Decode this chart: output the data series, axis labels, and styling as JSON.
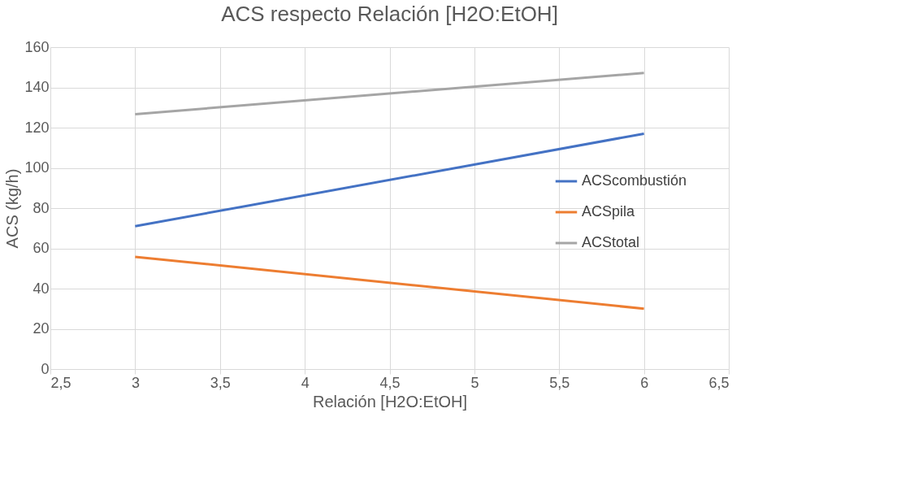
{
  "chart_data": {
    "type": "line",
    "title": "ACS respecto Relación [H2O:EtOH]",
    "xlabel": "Relación [H2O:EtOH]",
    "ylabel": "ACS (kg/h)",
    "x": [
      3,
      6
    ],
    "series": [
      {
        "name": "ACScombustión",
        "color": "#4472c4",
        "values": [
          71,
          117
        ]
      },
      {
        "name": "ACSpila",
        "color": "#ed7d31",
        "values": [
          55.8,
          30
        ]
      },
      {
        "name": "ACStotal",
        "color": "#a5a5a5",
        "values": [
          126.7,
          147.2
        ]
      }
    ],
    "xlim": [
      2.5,
      6.5
    ],
    "xticks": [
      {
        "value": 2.5,
        "label": "2,5"
      },
      3,
      {
        "value": 3.5,
        "label": "3,5"
      },
      4,
      {
        "value": 4.5,
        "label": "4,5"
      },
      5,
      {
        "value": 5.5,
        "label": "5,5"
      },
      6,
      {
        "value": 6.5,
        "label": "6,5"
      }
    ],
    "ylim": [
      0,
      160
    ],
    "yticks": [
      0,
      20,
      40,
      60,
      80,
      100,
      120,
      140,
      160
    ],
    "grid": true,
    "legend": "right",
    "marker": "none",
    "line_style": "solid"
  }
}
